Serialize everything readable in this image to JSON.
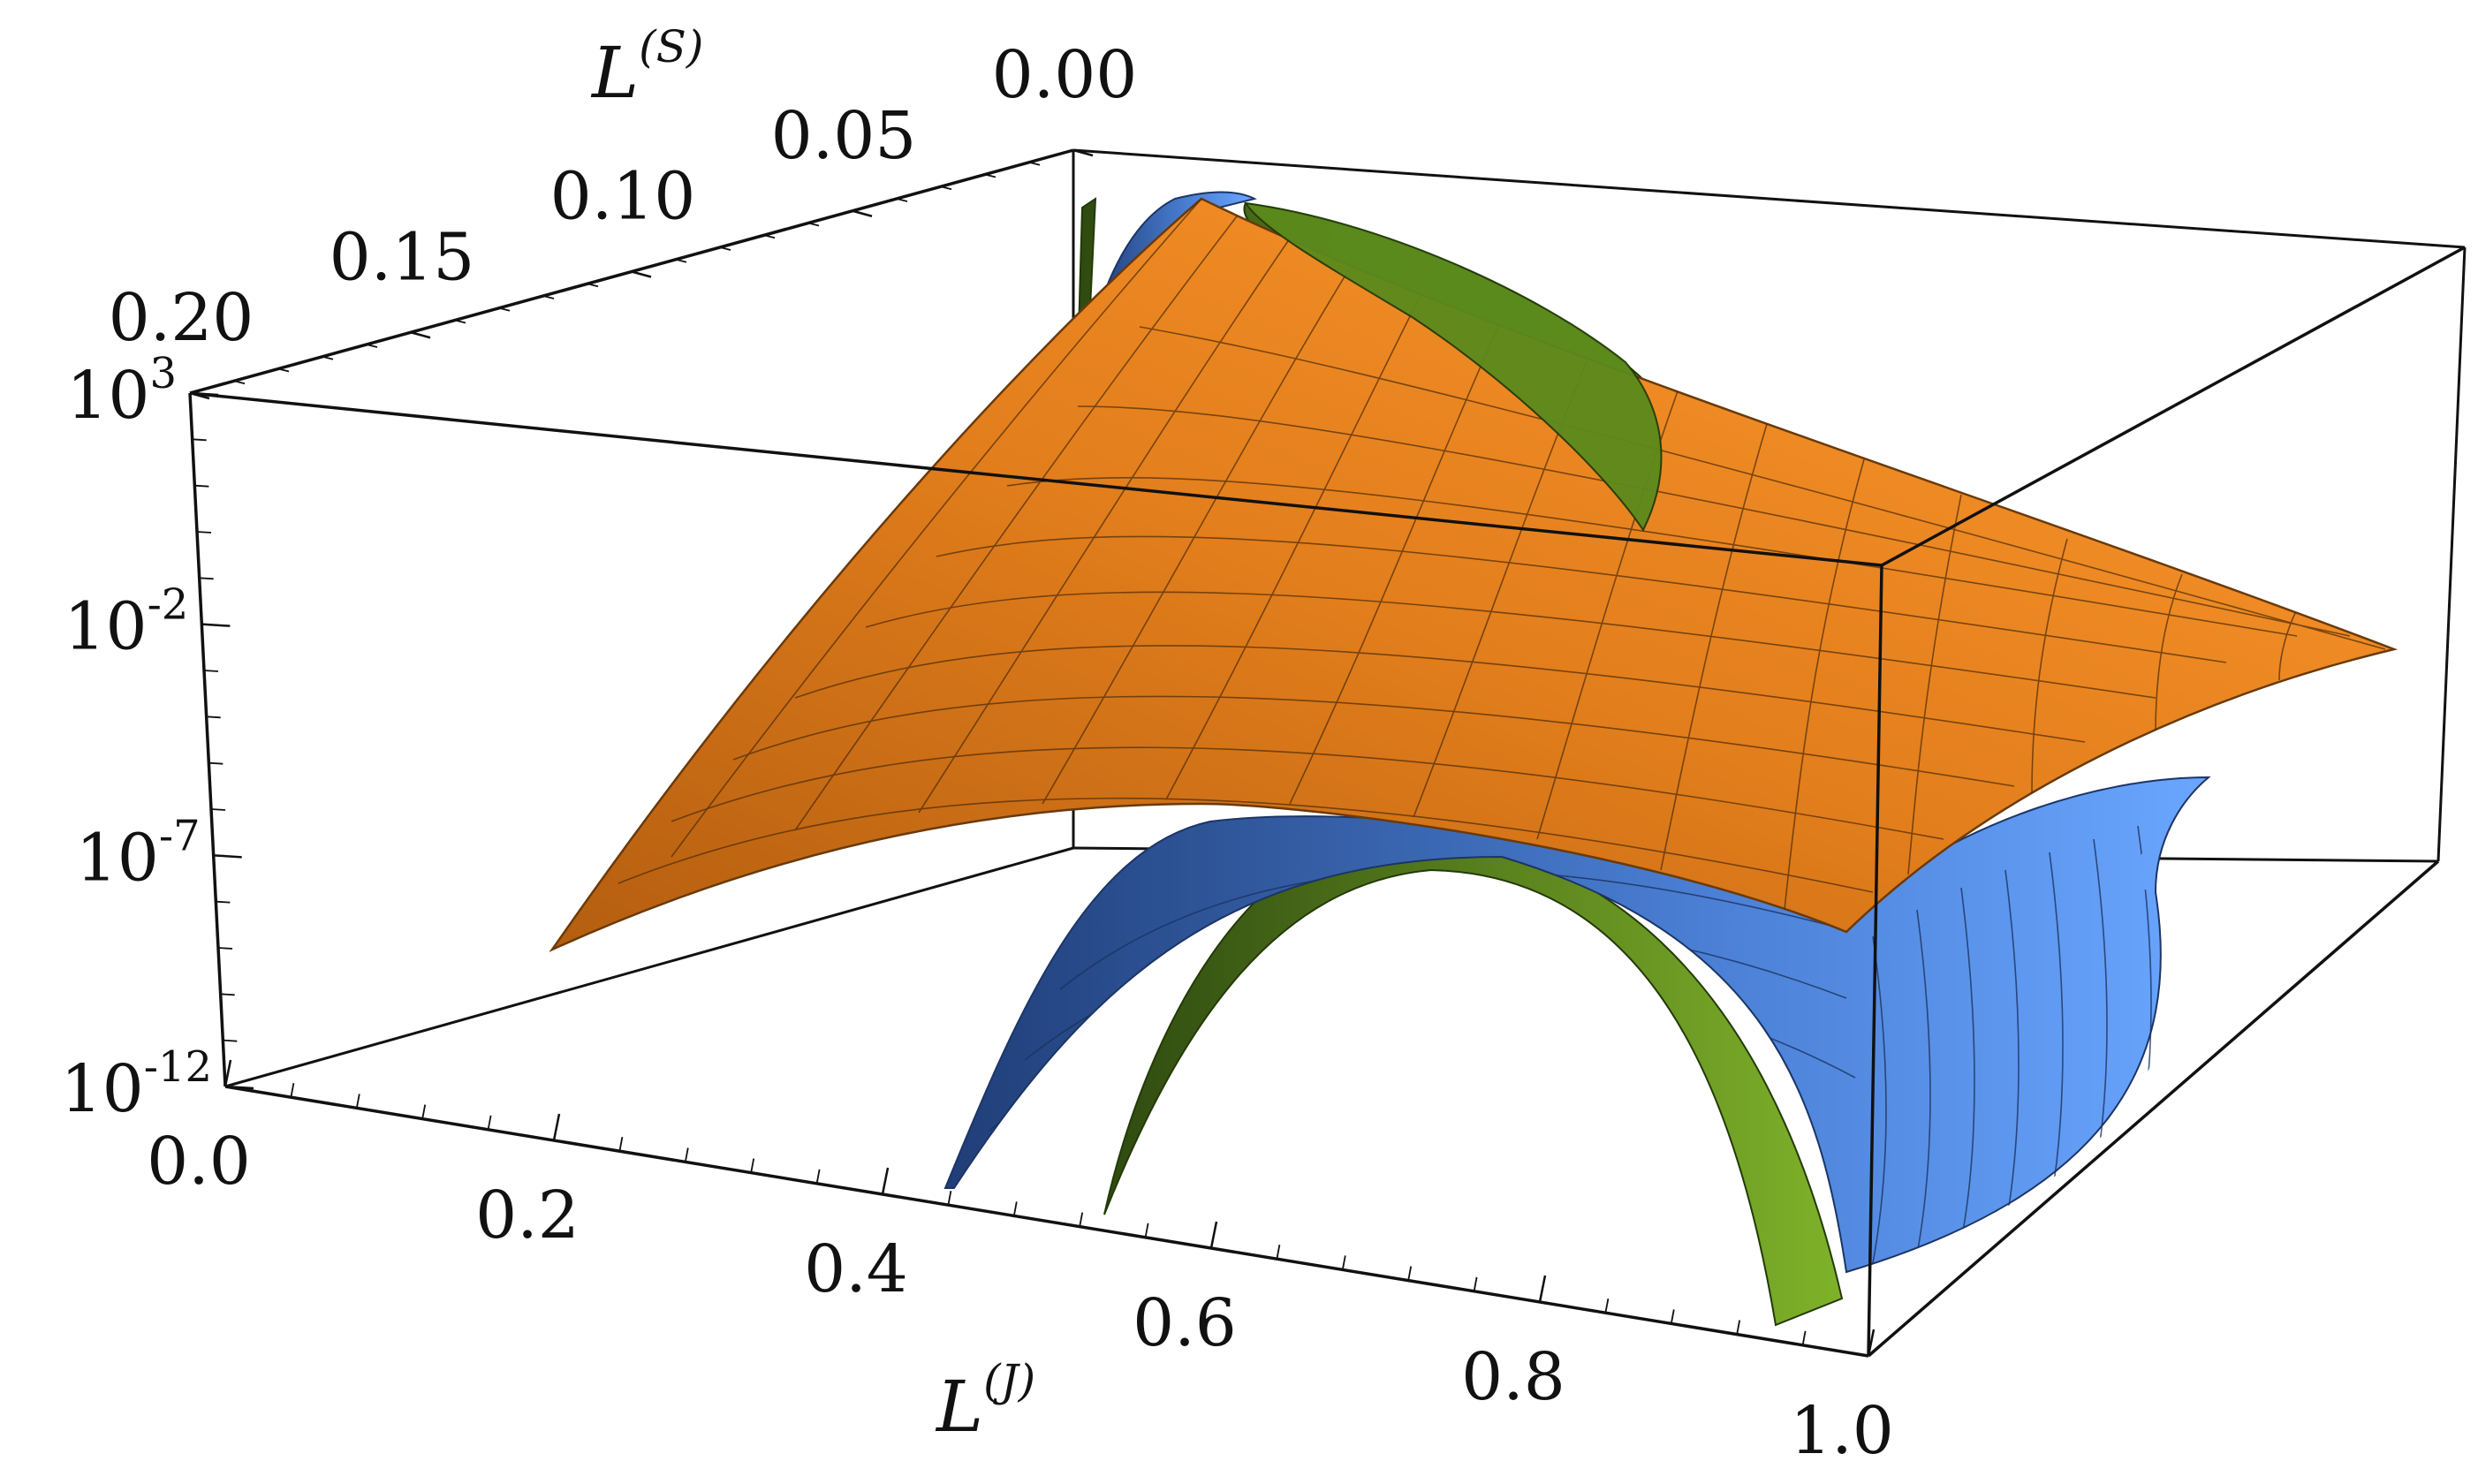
{
  "chart_data": {
    "type": "surface3d",
    "title": "",
    "x_axis": {
      "label": "L",
      "label_superscript": "(J)",
      "range": [
        0.0,
        1.0
      ],
      "ticks": [
        "0.0",
        "0.2",
        "0.4",
        "0.6",
        "0.8",
        "1.0"
      ],
      "values": [
        0.0,
        0.2,
        0.4,
        0.6,
        0.8,
        1.0
      ]
    },
    "y_axis": {
      "label": "L",
      "label_superscript": "(S)",
      "range": [
        0.0,
        0.2
      ],
      "ticks": [
        "0.00",
        "0.05",
        "0.10",
        "0.15",
        "0.20"
      ],
      "values": [
        0.0,
        0.05,
        0.1,
        0.15,
        0.2
      ]
    },
    "z_axis": {
      "scale": "log",
      "range": [
        1e-12,
        1000.0
      ],
      "ticks": [
        {
          "base": "10",
          "exp": "3"
        },
        {
          "base": "10",
          "exp": "-2"
        },
        {
          "base": "10",
          "exp": "-7"
        },
        {
          "base": "10",
          "exp": "-12"
        }
      ],
      "log_values": [
        3,
        -2,
        -7,
        -12
      ]
    },
    "surfaces": [
      {
        "color": "#f28a1e",
        "description_shape": "saddle"
      },
      {
        "color": "#5c95e8",
        "description_shape": "arch"
      },
      {
        "color": "#6f9f22",
        "description_shape": "arch"
      }
    ],
    "box": true,
    "mesh": true
  }
}
